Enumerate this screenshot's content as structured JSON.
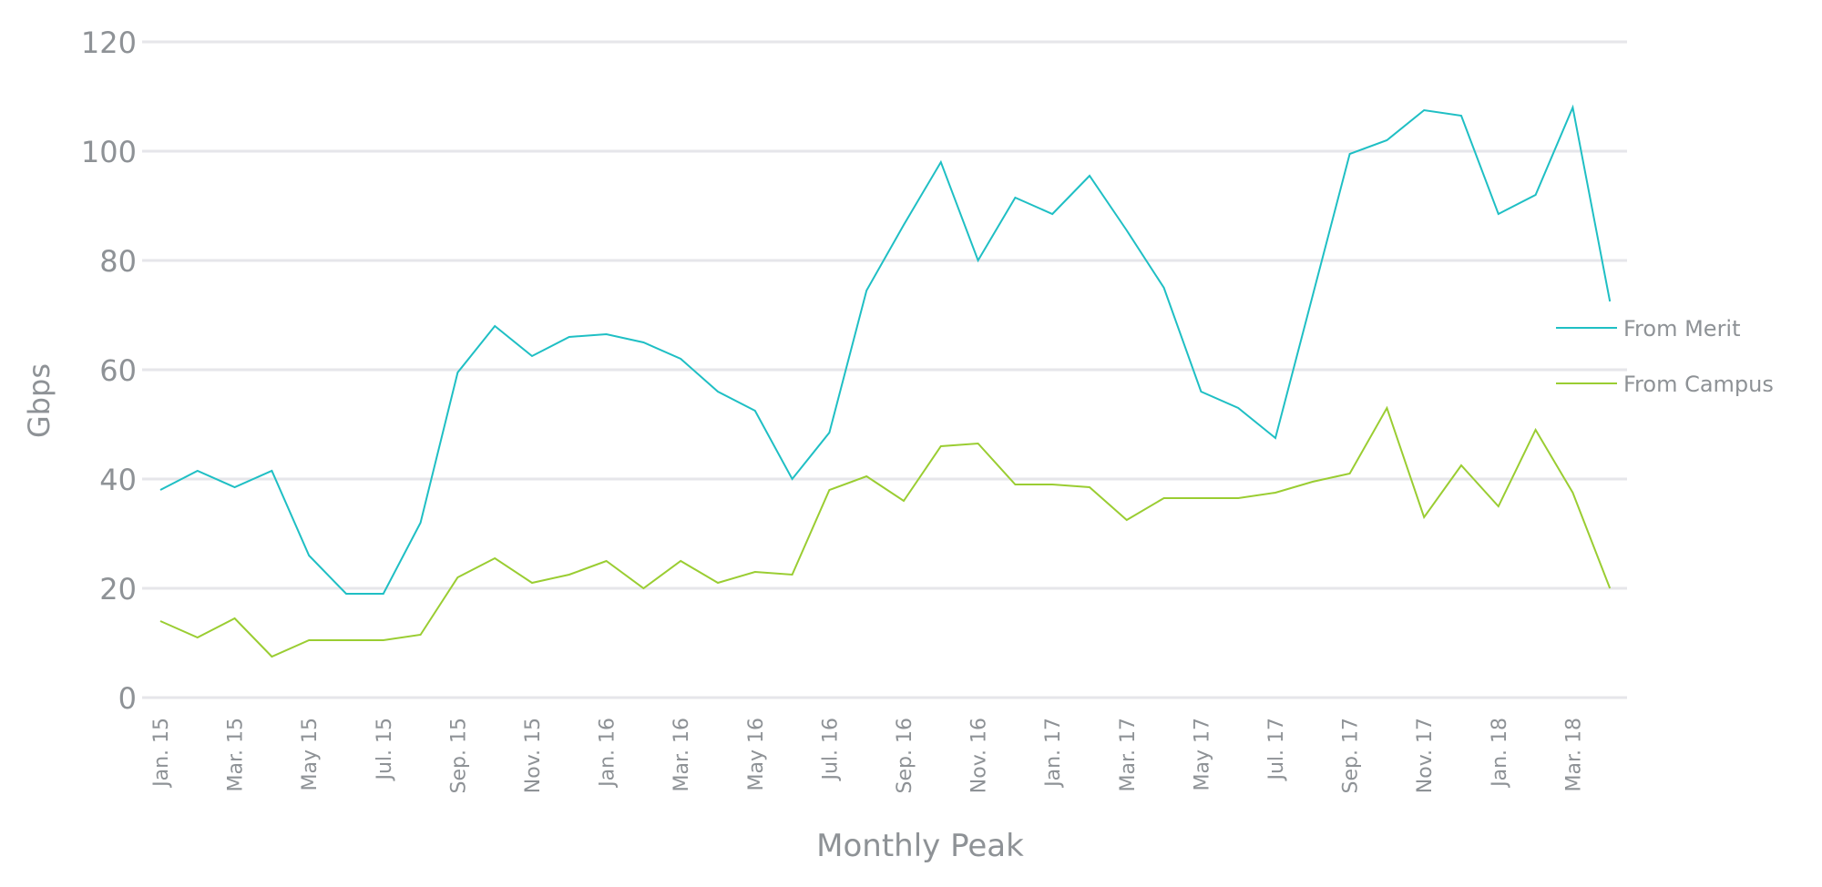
{
  "chart_data": {
    "type": "line",
    "title": "",
    "xlabel": "Monthly Peak",
    "ylabel": "Gbps",
    "ylim": [
      0,
      120
    ],
    "yticks": [
      "0",
      "20",
      "40",
      "60",
      "80",
      "100",
      "120"
    ],
    "grid": true,
    "legend_position": "right",
    "x": [
      "Jan. 15",
      "Feb. 15",
      "Mar. 15",
      "Apr. 15",
      "May 15",
      "Jun. 15",
      "Jul. 15",
      "Aug. 15",
      "Sep. 15",
      "Oct. 15",
      "Nov. 15",
      "Dec. 15",
      "Jan. 16",
      "Feb. 16",
      "Mar. 16",
      "Apr. 16",
      "May 16",
      "Jun. 16",
      "Jul. 16",
      "Aug. 16",
      "Sep. 16",
      "Oct. 16",
      "Nov. 16",
      "Dec. 16",
      "Jan. 17",
      "Feb. 17",
      "Mar. 17",
      "Apr. 17",
      "May 17",
      "Jun. 17",
      "Jul. 17",
      "Aug. 17",
      "Sep. 17",
      "Oct. 17",
      "Nov. 17",
      "Dec. 17",
      "Jan. 18",
      "Feb. 18",
      "Mar. 18",
      "Apr. 18"
    ],
    "xtick_labels": [
      "Jan. 15",
      "Mar. 15",
      "May 15",
      "Jul. 15",
      "Sep. 15",
      "Nov. 15",
      "Jan. 16",
      "Mar. 16",
      "May 16",
      "Jul. 16",
      "Sep. 16",
      "Nov. 16",
      "Jan. 17",
      "Mar. 17",
      "May 17",
      "Jul. 17",
      "Sep. 17",
      "Nov. 17",
      "Jan. 18",
      "Mar. 18"
    ],
    "series": [
      {
        "name": "From Merit",
        "color": "#1fbfc4",
        "values": [
          38,
          41.5,
          38.5,
          41.5,
          26,
          19,
          19,
          32,
          59.5,
          68,
          62.5,
          66,
          66.5,
          65,
          62,
          56,
          52.5,
          40,
          48.5,
          74.5,
          86.5,
          98,
          80,
          91.5,
          88.5,
          95.5,
          85.5,
          75,
          56,
          53,
          47.5,
          73.5,
          99.5,
          102,
          107.5,
          106.5,
          88.5,
          92,
          108,
          72.5
        ]
      },
      {
        "name": "From Campus",
        "color": "#9acd32",
        "values": [
          14,
          11,
          14.5,
          7.5,
          10.5,
          10.5,
          10.5,
          11.5,
          22,
          25.5,
          21,
          22.5,
          25,
          20,
          25,
          21,
          23,
          22.5,
          38,
          40.5,
          36,
          46,
          46.5,
          39,
          39,
          38.5,
          32.5,
          36.5,
          36.5,
          36.5,
          37.5,
          39.5,
          41,
          53,
          33,
          42.5,
          35,
          49,
          37.5,
          20
        ]
      }
    ]
  }
}
